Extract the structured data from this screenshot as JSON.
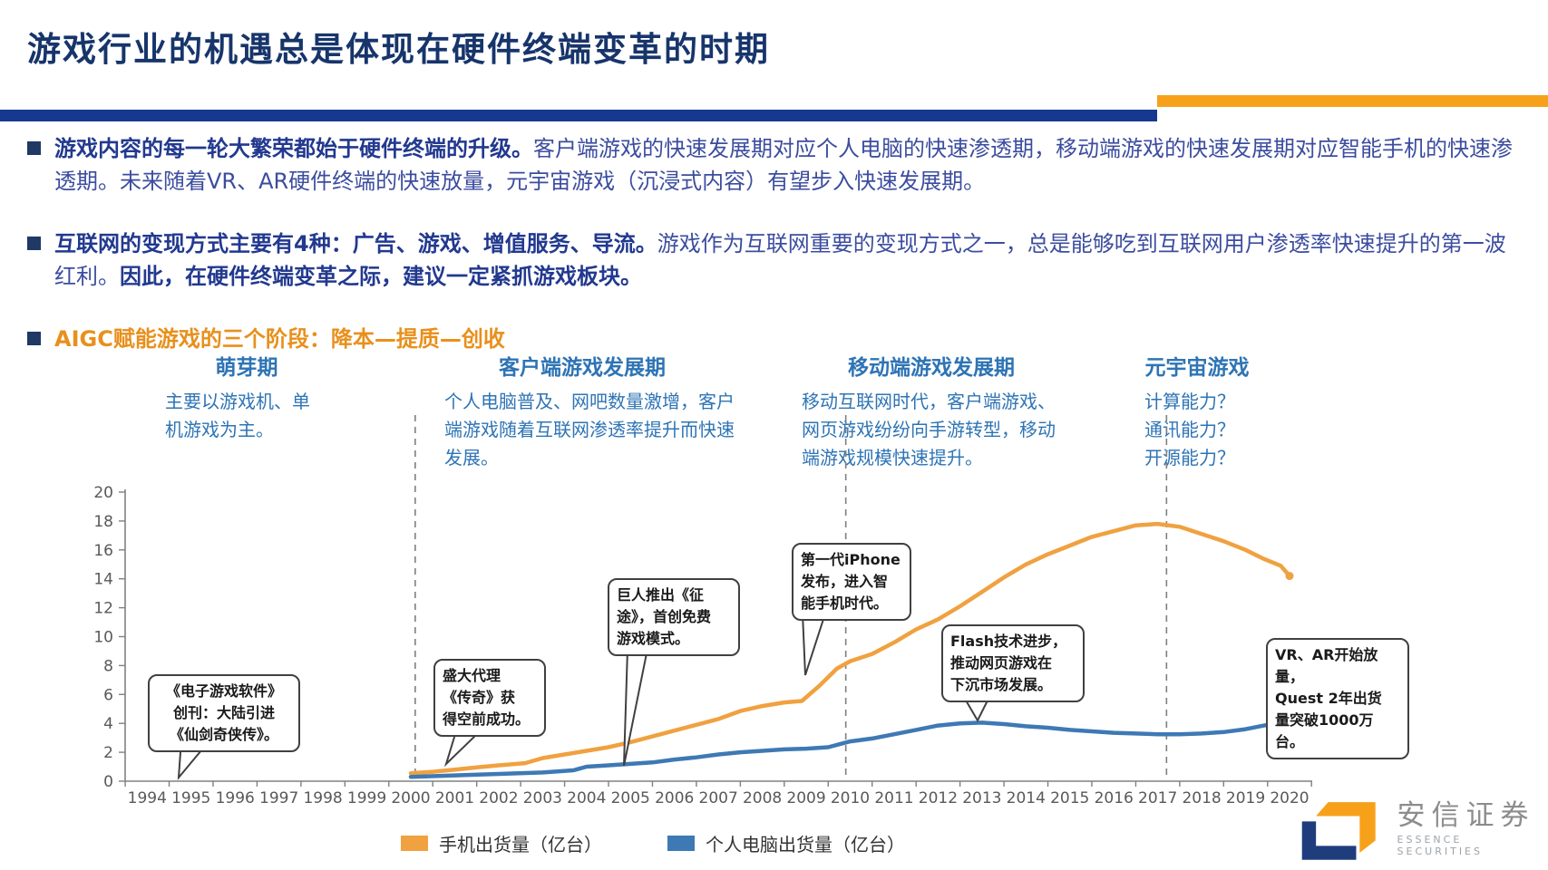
{
  "header": {
    "title": "游戏行业的机遇总是体现在硬件终端变革的时期",
    "accent_blue": "#16388E",
    "accent_orange": "#F7A11A"
  },
  "bullets": [
    {
      "bold": "游戏内容的每一轮大繁荣都始于硬件终端的升级。",
      "text": "客户端游戏的快速发展期对应个人电脑的快速渗透期，移动端游戏的快速发展期对应智能手机的快速渗透期。未来随着VR、AR硬件终端的快速放量，元宇宙游戏（沉浸式内容）有望步入快速发展期。",
      "bold2": ""
    },
    {
      "bold": "互联网的变现方式主要有4种：广告、游戏、增值服务、导流。",
      "text": "游戏作为互联网重要的变现方式之一，总是能够吃到互联网用户渗透率快速提升的第一波红利。",
      "bold2": "因此，在硬件终端变革之际，建议一定紧抓游戏板块。"
    },
    {
      "aigc": "AIGC赋能游戏的三个阶段：降本—提质—创收"
    }
  ],
  "stages": [
    {
      "title": "萌芽期",
      "desc": "主要以游戏机、单\n机游戏为主。"
    },
    {
      "title": "客户端游戏发展期",
      "desc": "个人电脑普及、网吧数量激增，客户\n端游戏随着互联网渗透率提升而快速\n发展。"
    },
    {
      "title": "移动端游戏发展期",
      "desc": "移动互联网时代，客户端游戏、\n网页游戏纷纷向手游转型，移动\n端游戏规模快速提升。"
    },
    {
      "title": "元宇宙游戏",
      "desc": "计算能力？\n通讯能力？\n开源能力？"
    }
  ],
  "callouts": [
    {
      "text": "《电子游戏软件》\n创刊：大陆引进\n《仙剑奇侠传》。"
    },
    {
      "text": "盛大代理\n《传奇》获\n得空前成功。"
    },
    {
      "text": "巨人推出《征\n途》，首创免费\n游戏模式。"
    },
    {
      "text": "第一代iPhone\n发布，进入智\n能手机时代。"
    },
    {
      "text": "Flash技术进步，\n推动网页游戏在\n下沉市场发展。"
    },
    {
      "text": "VR、AR开始放量，\nQuest 2年出货\n量突破1000万台。"
    }
  ],
  "chart_data": {
    "type": "line",
    "title": "",
    "xlabel": "",
    "ylabel": "",
    "x_min": 1994,
    "x_max": 2020,
    "ylim": [
      0,
      20
    ],
    "ytick_step": 2,
    "grid": false,
    "legend_position": "bottom",
    "dividers_years": [
      2000.1,
      2009.9,
      2017.2
    ],
    "series": [
      {
        "name": "手机出货量（亿台）",
        "color": "#F0A140",
        "points": [
          [
            2000,
            0.55
          ],
          [
            2000.5,
            0.65
          ],
          [
            2001,
            0.8
          ],
          [
            2001.5,
            0.95
          ],
          [
            2002,
            1.1
          ],
          [
            2002.6,
            1.25
          ],
          [
            2003,
            1.6
          ],
          [
            2003.5,
            1.85
          ],
          [
            2004,
            2.1
          ],
          [
            2004.5,
            2.35
          ],
          [
            2005,
            2.7
          ],
          [
            2005.5,
            3.1
          ],
          [
            2006,
            3.5
          ],
          [
            2006.5,
            3.9
          ],
          [
            2007,
            4.3
          ],
          [
            2007.5,
            4.85
          ],
          [
            2008,
            5.2
          ],
          [
            2008.5,
            5.45
          ],
          [
            2008.9,
            5.55
          ],
          [
            2009.3,
            6.6
          ],
          [
            2009.7,
            7.8
          ],
          [
            2010,
            8.3
          ],
          [
            2010.5,
            8.8
          ],
          [
            2011,
            9.6
          ],
          [
            2011.5,
            10.5
          ],
          [
            2012,
            11.2
          ],
          [
            2012.5,
            12.1
          ],
          [
            2013,
            13.1
          ],
          [
            2013.5,
            14.1
          ],
          [
            2014,
            15.0
          ],
          [
            2014.5,
            15.7
          ],
          [
            2015,
            16.3
          ],
          [
            2015.5,
            16.9
          ],
          [
            2016,
            17.3
          ],
          [
            2016.5,
            17.7
          ],
          [
            2017,
            17.8
          ],
          [
            2017.5,
            17.6
          ],
          [
            2018,
            17.1
          ],
          [
            2018.5,
            16.6
          ],
          [
            2019,
            16.0
          ],
          [
            2019.4,
            15.4
          ],
          [
            2019.8,
            14.9
          ],
          [
            2020,
            14.2
          ]
        ]
      },
      {
        "name": "个人电脑出货量（亿台）",
        "color": "#3E79B4",
        "points": [
          [
            2000,
            0.3
          ],
          [
            2001,
            0.4
          ],
          [
            2002,
            0.5
          ],
          [
            2003,
            0.6
          ],
          [
            2003.7,
            0.75
          ],
          [
            2004,
            1.0
          ],
          [
            2004.5,
            1.1
          ],
          [
            2005,
            1.2
          ],
          [
            2005.5,
            1.3
          ],
          [
            2006,
            1.5
          ],
          [
            2006.5,
            1.65
          ],
          [
            2007,
            1.85
          ],
          [
            2007.5,
            2.0
          ],
          [
            2008,
            2.1
          ],
          [
            2008.5,
            2.2
          ],
          [
            2009,
            2.25
          ],
          [
            2009.5,
            2.35
          ],
          [
            2010,
            2.75
          ],
          [
            2010.5,
            2.95
          ],
          [
            2011,
            3.25
          ],
          [
            2011.5,
            3.55
          ],
          [
            2012,
            3.85
          ],
          [
            2012.5,
            4.0
          ],
          [
            2013,
            4.05
          ],
          [
            2013.5,
            3.95
          ],
          [
            2014,
            3.8
          ],
          [
            2014.5,
            3.7
          ],
          [
            2015,
            3.55
          ],
          [
            2015.5,
            3.45
          ],
          [
            2016,
            3.35
          ],
          [
            2016.5,
            3.3
          ],
          [
            2017,
            3.25
          ],
          [
            2017.5,
            3.25
          ],
          [
            2018,
            3.3
          ],
          [
            2018.5,
            3.4
          ],
          [
            2019,
            3.6
          ],
          [
            2019.5,
            3.9
          ],
          [
            2020,
            4.3
          ]
        ]
      }
    ]
  },
  "logo": {
    "name_cn": "安信证券",
    "name_en": "ESSENCE  SECURITIES"
  }
}
